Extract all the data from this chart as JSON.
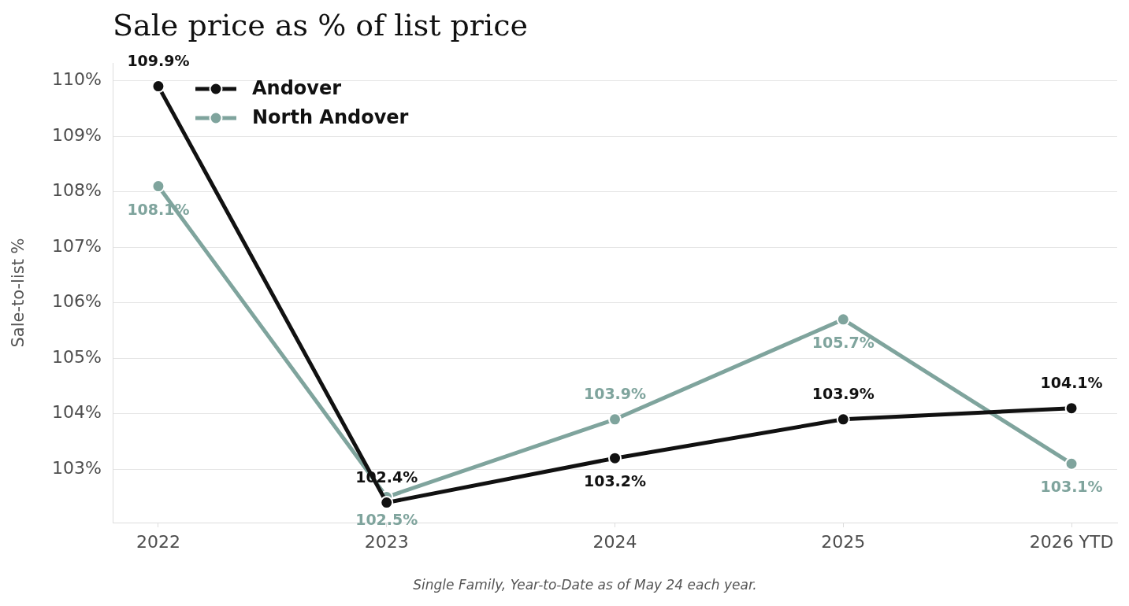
{
  "chart_data": {
    "type": "line",
    "title": "Sale price as % of list price",
    "ylabel": "Sale-to-list %",
    "annotations": [
      "Single Family, Year-to-Date as of May 24 each year."
    ],
    "categories": [
      "2022",
      "2023",
      "2024",
      "2025",
      "2026 YTD"
    ],
    "series": [
      {
        "name": "Andover",
        "color": "#111111",
        "values": [
          109.9,
          102.4,
          103.2,
          103.9,
          104.1
        ],
        "value_labels": [
          "109.9%",
          "102.4%",
          "103.2%",
          "103.9%",
          "104.1%"
        ]
      },
      {
        "name": "North Andover",
        "color": "#7fa49d",
        "values": [
          108.1,
          102.5,
          103.9,
          105.7,
          103.1
        ],
        "value_labels": [
          "108.1%",
          "102.5%",
          "103.9%",
          "105.7%",
          "103.1%"
        ]
      }
    ],
    "ylim": [
      102.04,
      110.32
    ],
    "yticks": [
      {
        "value": 103,
        "label": "103%"
      },
      {
        "value": 104,
        "label": "104%"
      },
      {
        "value": 105,
        "label": "105%"
      },
      {
        "value": 106,
        "label": "106%"
      },
      {
        "value": 107,
        "label": "107%"
      },
      {
        "value": 108,
        "label": "108%"
      },
      {
        "value": 109,
        "label": "109%"
      },
      {
        "value": 110,
        "label": "110%"
      }
    ],
    "grid": "y",
    "legend": "top left",
    "marker": "circle",
    "line_style": "solid"
  }
}
